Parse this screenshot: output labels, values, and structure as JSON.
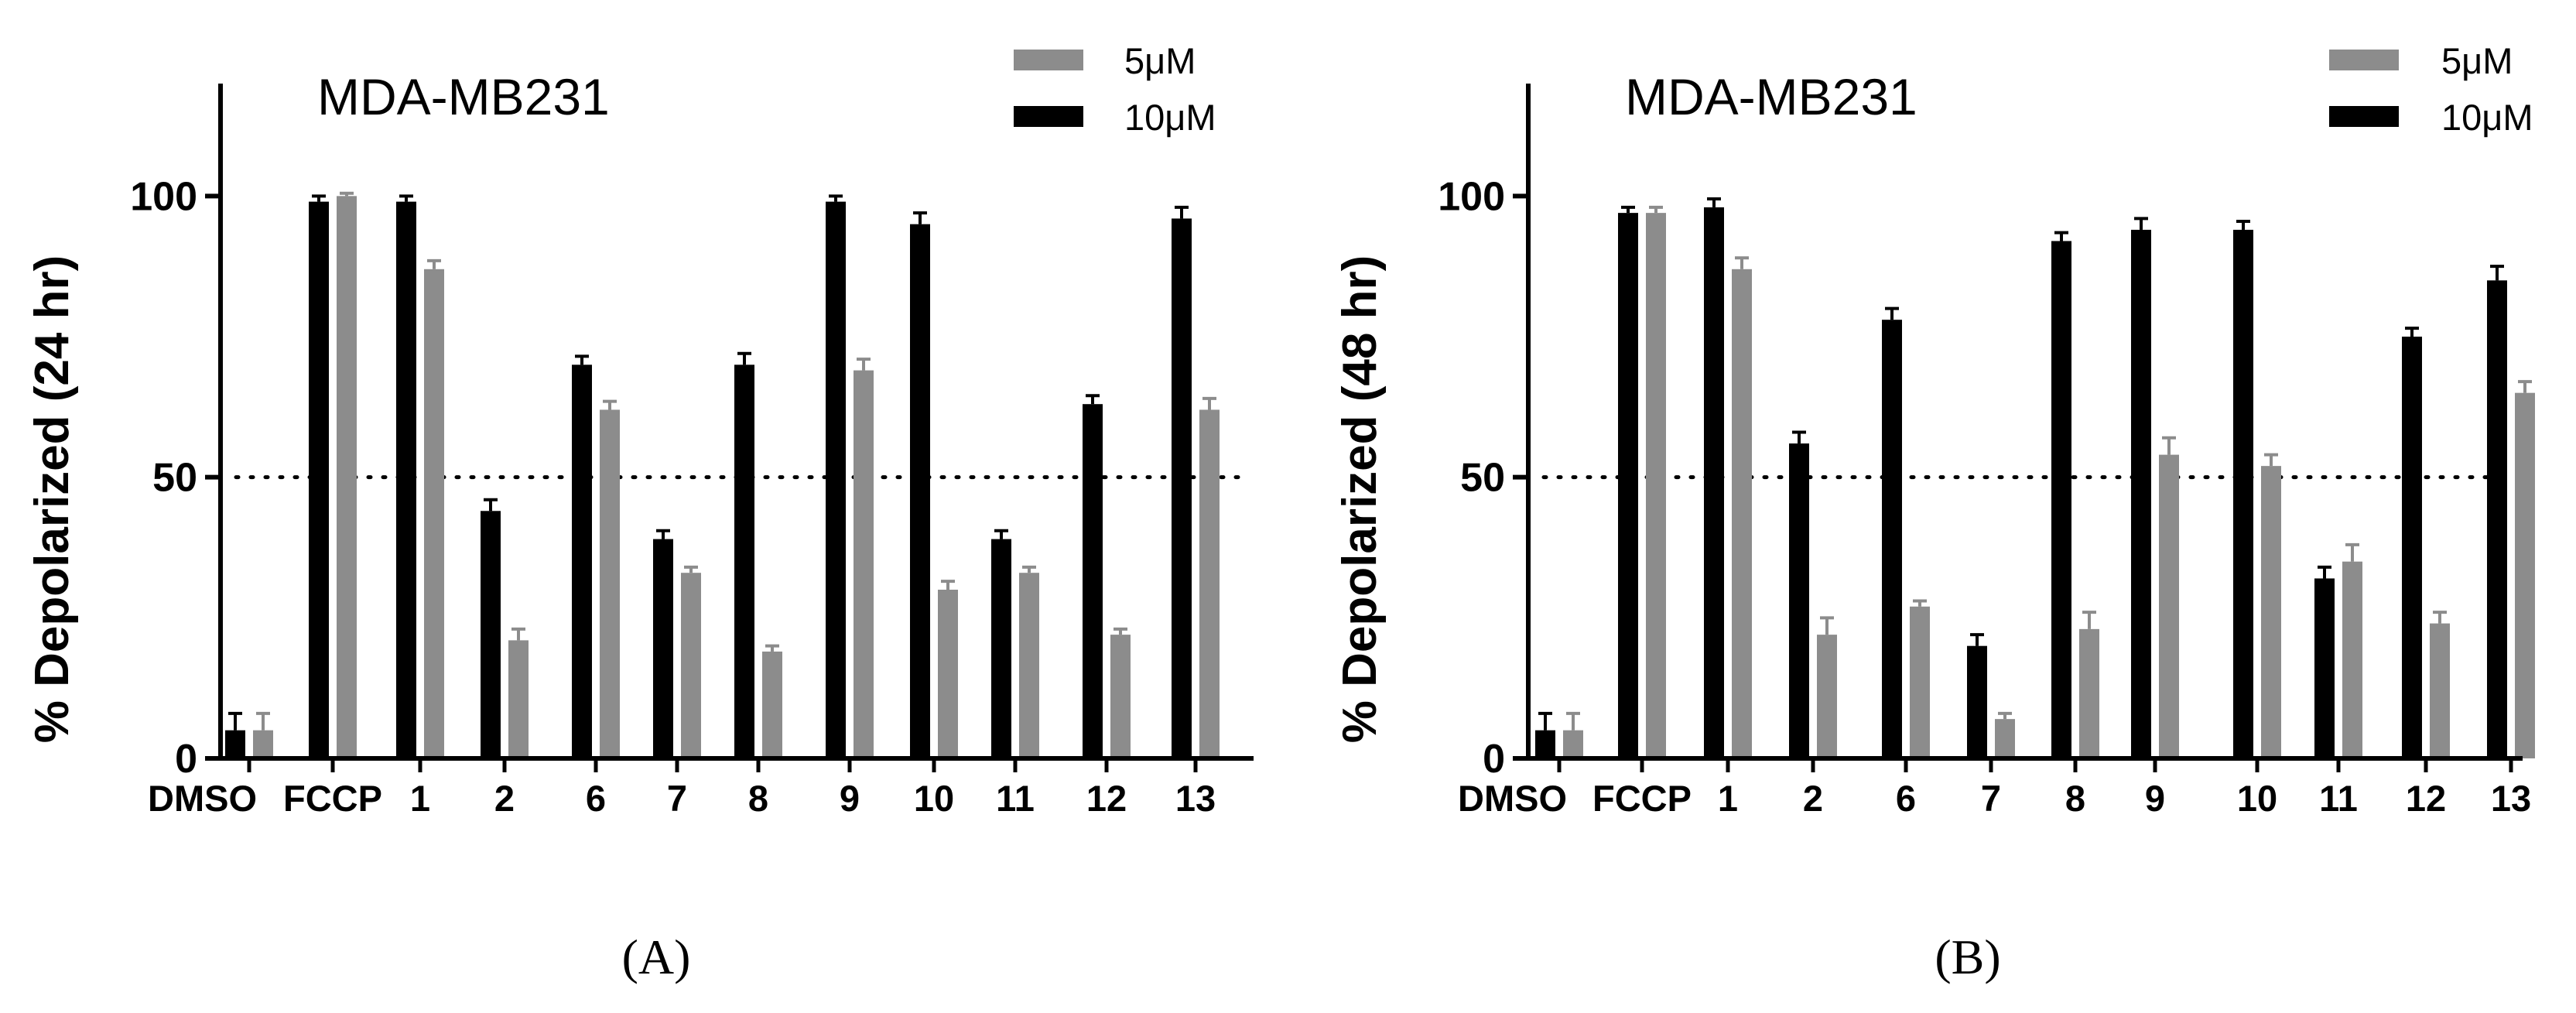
{
  "chart_data": [
    {
      "type": "bar",
      "panel_label": "(A)",
      "title": "MDA-MB231",
      "ylabel": "% Depolarized (24 hr)",
      "xlabel": "",
      "ylim": [
        0,
        120
      ],
      "yticks": [
        "0",
        "50",
        "100"
      ],
      "reference_line": 50,
      "legend": {
        "placement": "top-right",
        "entries": [
          "5μM",
          "10μM"
        ]
      },
      "colors": {
        "5uM": "#8c8c8c",
        "10uM": "#000000"
      },
      "categories": [
        "DMSO",
        "FCCP",
        "1",
        "2",
        "6",
        "7",
        "8",
        "9",
        "10",
        "11",
        "12",
        "13"
      ],
      "series": [
        {
          "name": "10μM",
          "values": [
            5,
            99,
            99,
            44,
            70,
            39,
            70,
            99,
            95,
            39,
            63,
            96
          ],
          "errors": [
            3,
            1,
            1,
            2,
            1.5,
            1.5,
            2,
            1,
            2,
            1.5,
            1.5,
            2
          ]
        },
        {
          "name": "5μM",
          "values": [
            5,
            100,
            87,
            21,
            62,
            33,
            19,
            69,
            30,
            33,
            22,
            62
          ],
          "errors": [
            3,
            0.5,
            1.5,
            2,
            1.5,
            1,
            1,
            2,
            1.5,
            1,
            1,
            2
          ]
        }
      ]
    },
    {
      "type": "bar",
      "panel_label": "(B)",
      "title": "MDA-MB231",
      "ylabel": "% Depolarized (48 hr)",
      "xlabel": "",
      "ylim": [
        0,
        120
      ],
      "yticks": [
        "0",
        "50",
        "100"
      ],
      "reference_line": 50,
      "legend": {
        "placement": "top-right",
        "entries": [
          "5μM",
          "10μM"
        ]
      },
      "colors": {
        "5uM": "#8c8c8c",
        "10uM": "#000000"
      },
      "categories": [
        "DMSO",
        "FCCP",
        "1",
        "2",
        "6",
        "7",
        "8",
        "9",
        "10",
        "11",
        "12",
        "13"
      ],
      "series": [
        {
          "name": "10μM",
          "values": [
            5,
            97,
            98,
            56,
            78,
            20,
            92,
            94,
            94,
            32,
            75,
            85
          ],
          "errors": [
            3,
            1,
            1.5,
            2,
            2,
            2,
            1.5,
            2,
            1.5,
            2,
            1.5,
            2.5
          ]
        },
        {
          "name": "5μM",
          "values": [
            5,
            97,
            87,
            22,
            27,
            7,
            23,
            54,
            52,
            35,
            24,
            65
          ],
          "errors": [
            3,
            1,
            2,
            3,
            1,
            1,
            3,
            3,
            2,
            3,
            2,
            2
          ]
        }
      ]
    }
  ]
}
